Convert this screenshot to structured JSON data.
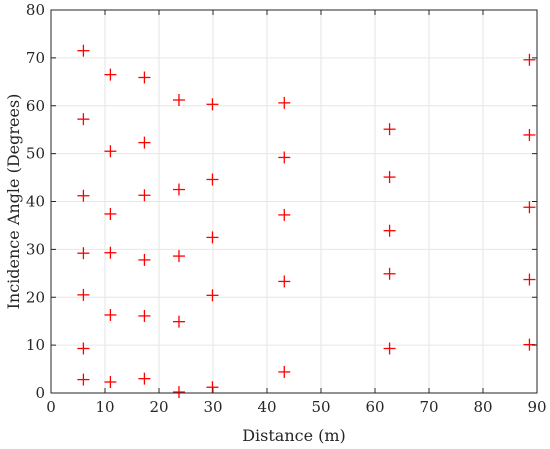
{
  "chart_data": {
    "type": "scatter",
    "title": "",
    "xlabel": "Distance (m)",
    "ylabel": "Incidence Angle (Degrees)",
    "xlim": [
      0,
      90
    ],
    "ylim": [
      0,
      80
    ],
    "xticks": [
      0,
      10,
      20,
      30,
      40,
      50,
      60,
      70,
      80,
      90
    ],
    "yticks": [
      0,
      10,
      20,
      30,
      40,
      50,
      60,
      70,
      80
    ],
    "grid": true,
    "marker": "plus",
    "color": "#ff0000",
    "points": [
      [
        6,
        71.5
      ],
      [
        6,
        57.2
      ],
      [
        6,
        41.2
      ],
      [
        6,
        29.2
      ],
      [
        6,
        20.5
      ],
      [
        6,
        9.3
      ],
      [
        6,
        2.8
      ],
      [
        11,
        66.5
      ],
      [
        11,
        50.5
      ],
      [
        11,
        37.4
      ],
      [
        11,
        29.3
      ],
      [
        11,
        16.3
      ],
      [
        11,
        2.3
      ],
      [
        17.3,
        65.9
      ],
      [
        17.3,
        52.3
      ],
      [
        17.3,
        41.3
      ],
      [
        17.3,
        27.8
      ],
      [
        17.3,
        16.1
      ],
      [
        17.3,
        3.0
      ],
      [
        23.7,
        61.2
      ],
      [
        23.7,
        42.5
      ],
      [
        23.7,
        28.6
      ],
      [
        23.7,
        14.9
      ],
      [
        23.7,
        0.2
      ],
      [
        29.9,
        60.3
      ],
      [
        29.9,
        44.6
      ],
      [
        29.9,
        32.5
      ],
      [
        29.9,
        20.4
      ],
      [
        29.9,
        1.2
      ],
      [
        43.2,
        60.6
      ],
      [
        43.2,
        49.2
      ],
      [
        43.2,
        37.2
      ],
      [
        43.2,
        23.3
      ],
      [
        43.2,
        4.4
      ],
      [
        62.7,
        55.1
      ],
      [
        62.7,
        45.1
      ],
      [
        62.7,
        33.9
      ],
      [
        62.7,
        24.9
      ],
      [
        62.7,
        9.3
      ],
      [
        88.6,
        69.6
      ],
      [
        88.6,
        53.9
      ],
      [
        88.6,
        38.8
      ],
      [
        88.6,
        23.7
      ],
      [
        88.6,
        10.1
      ]
    ]
  }
}
